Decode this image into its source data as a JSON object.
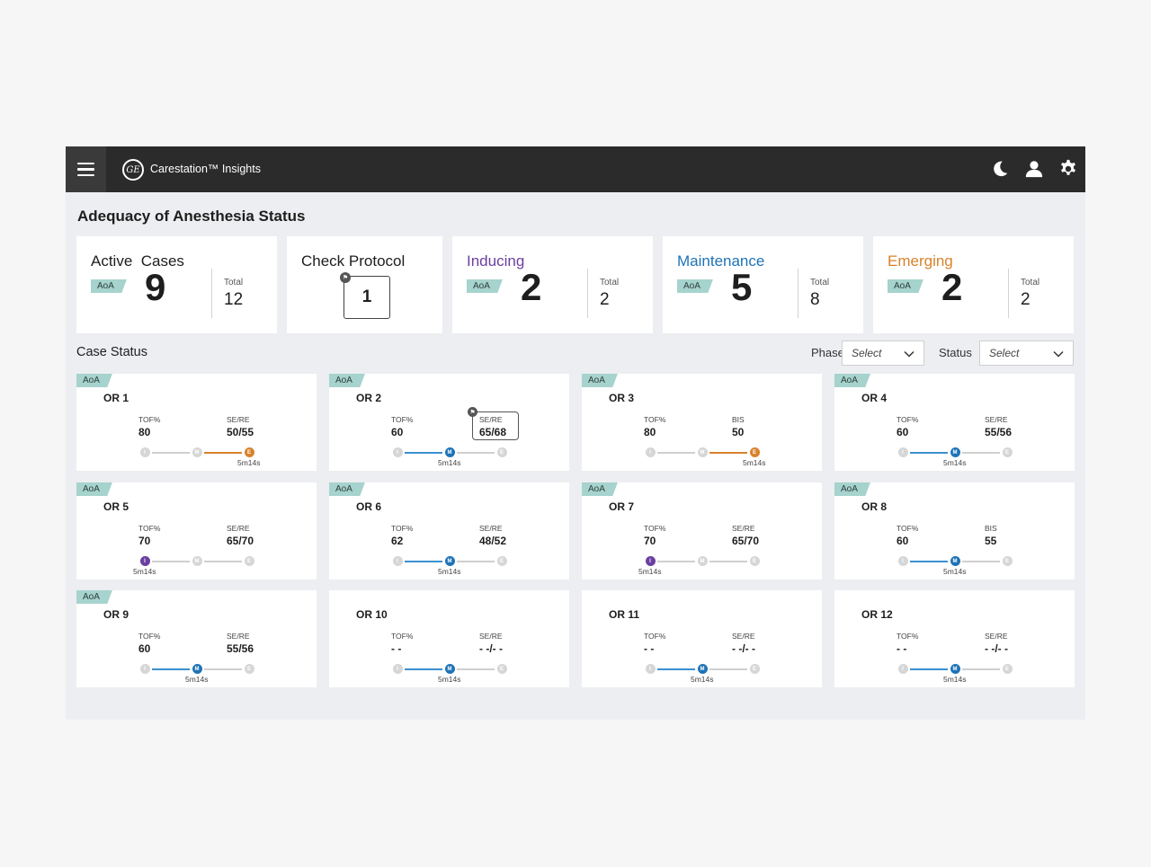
{
  "header": {
    "app_title": "Carestation™ Insights",
    "logo_text": "GE",
    "icons": [
      "menu-icon",
      "moon-icon",
      "user-icon",
      "gear-icon"
    ]
  },
  "page_title": "Adequacy of Anesthesia Status",
  "summary": {
    "aoa_label": "AoA",
    "total_label": "Total",
    "active": {
      "title": "Active  Cases",
      "count": "9",
      "total": "12"
    },
    "protocol": {
      "title": "Check Protocol",
      "count": "1"
    },
    "inducing": {
      "title": "Inducing",
      "count": "2",
      "total": "2",
      "color": "#6b3fa0"
    },
    "maintenance": {
      "title": "Maintenance",
      "count": "5",
      "total": "8",
      "color": "#1f73b7"
    },
    "emerging": {
      "title": "Emerging",
      "count": "2",
      "total": "2",
      "color": "#d9822b"
    }
  },
  "case_status": {
    "label": "Case Status",
    "phase_label": "Phase",
    "phase_value": "Select",
    "status_label": "Status",
    "status_value": "Select"
  },
  "phase_letters": {
    "I": "I",
    "M": "M",
    "E": "E"
  },
  "colors": {
    "inducing": "#6b3fa0",
    "maintenance": "#1f73b7",
    "emerging": "#d9822b",
    "aoa_tag": "#a6d3cd",
    "header": "#2b2b2b"
  },
  "cases": [
    {
      "name": "OR 1",
      "aoa": "AoA",
      "m1_label": "TOF%",
      "m1_value": "80",
      "m2_label": "SE/RE",
      "m2_value": "50/55",
      "phase": "E",
      "time": "5m14s",
      "flagged": false
    },
    {
      "name": "OR 2",
      "aoa": "AoA",
      "m1_label": "TOF%",
      "m1_value": "60",
      "m2_label": "SE/RE",
      "m2_value": "65/68",
      "phase": "M",
      "time": "5m14s",
      "flagged": true
    },
    {
      "name": "OR 3",
      "aoa": "AoA",
      "m1_label": "TOF%",
      "m1_value": "80",
      "m2_label": "BIS",
      "m2_value": "50",
      "phase": "E",
      "time": "5m14s",
      "flagged": false
    },
    {
      "name": "OR 4",
      "aoa": "AoA",
      "m1_label": "TOF%",
      "m1_value": "60",
      "m2_label": "SE/RE",
      "m2_value": "55/56",
      "phase": "M",
      "time": "5m14s",
      "flagged": false
    },
    {
      "name": "OR 5",
      "aoa": "AoA",
      "m1_label": "TOF%",
      "m1_value": "70",
      "m2_label": "SE/RE",
      "m2_value": "65/70",
      "phase": "I",
      "time": "5m14s",
      "flagged": false
    },
    {
      "name": "OR 6",
      "aoa": "AoA",
      "m1_label": "TOF%",
      "m1_value": "62",
      "m2_label": "SE/RE",
      "m2_value": "48/52",
      "phase": "M",
      "time": "5m14s",
      "flagged": false
    },
    {
      "name": "OR 7",
      "aoa": "AoA",
      "m1_label": "TOF%",
      "m1_value": "70",
      "m2_label": "SE/RE",
      "m2_value": "65/70",
      "phase": "I",
      "time": "5m14s",
      "flagged": false
    },
    {
      "name": "OR 8",
      "aoa": "AoA",
      "m1_label": "TOF%",
      "m1_value": "60",
      "m2_label": "BIS",
      "m2_value": "55",
      "phase": "M",
      "time": "5m14s",
      "flagged": false
    },
    {
      "name": "OR 9",
      "aoa": "AoA",
      "m1_label": "TOF%",
      "m1_value": "60",
      "m2_label": "SE/RE",
      "m2_value": "55/56",
      "phase": "M",
      "time": "5m14s",
      "flagged": false
    },
    {
      "name": "OR 10",
      "aoa": "",
      "m1_label": "TOF%",
      "m1_value": "- -",
      "m2_label": "SE/RE",
      "m2_value": "- -/- -",
      "phase": "M",
      "time": "5m14s",
      "flagged": false
    },
    {
      "name": "OR 11",
      "aoa": "",
      "m1_label": "TOF%",
      "m1_value": "- -",
      "m2_label": "SE/RE",
      "m2_value": "- -/- -",
      "phase": "M",
      "time": "5m14s",
      "flagged": false
    },
    {
      "name": "OR 12",
      "aoa": "",
      "m1_label": "TOF%",
      "m1_value": "- -",
      "m2_label": "SE/RE",
      "m2_value": "- -/- -",
      "phase": "M",
      "time": "5m14s",
      "flagged": false
    }
  ]
}
